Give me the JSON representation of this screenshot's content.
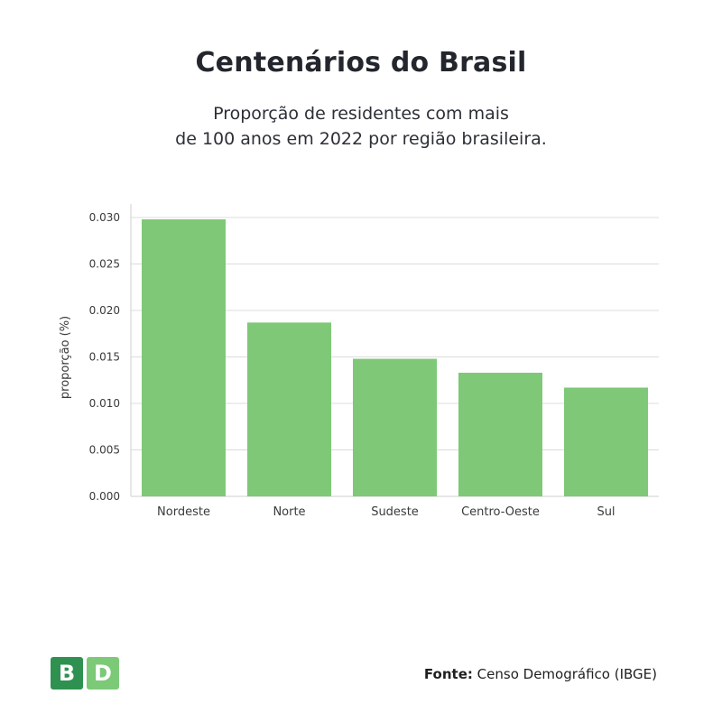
{
  "header": {
    "title": "Centenários do Brasil",
    "subtitle_line1": "Proporção de residentes com mais",
    "subtitle_line2": "de 100 anos em 2022 por região brasileira."
  },
  "footer": {
    "logo_left": "B",
    "logo_right": "D",
    "source_label": "Fonte:",
    "source_text": "Censo Demográfico (IBGE)"
  },
  "colors": {
    "bar": "#7ec878",
    "grid": "#dcdcdc",
    "axis_text": "#3a3a3a"
  },
  "chart_data": {
    "type": "bar",
    "categories": [
      "Nordeste",
      "Norte",
      "Sudeste",
      "Centro-Oeste",
      "Sul"
    ],
    "values": [
      0.0298,
      0.0187,
      0.0148,
      0.0133,
      0.0117
    ],
    "ylabel": "proporção (%)",
    "xlabel": "",
    "ylim": [
      0,
      0.03
    ],
    "yticks": [
      "0.000",
      "0.005",
      "0.010",
      "0.015",
      "0.020",
      "0.025",
      "0.030"
    ],
    "grid": true
  }
}
